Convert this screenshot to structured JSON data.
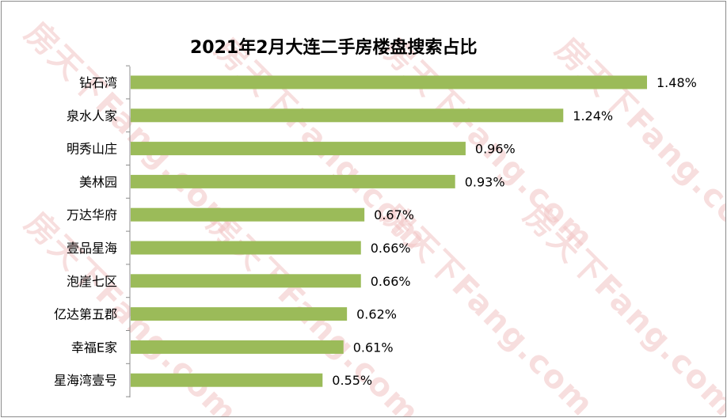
{
  "chart_data": {
    "type": "bar",
    "orientation": "horizontal",
    "title": "2021年2月大连二手房楼盘搜索占比",
    "categories": [
      "钻石湾",
      "泉水人家",
      "明秀山庄",
      "美林园",
      "万达华府",
      "壹品星海",
      "泡崖七区",
      "亿达第五郡",
      "幸福E家",
      "星海湾壹号"
    ],
    "values": [
      1.48,
      1.24,
      0.96,
      0.93,
      0.67,
      0.66,
      0.66,
      0.62,
      0.61,
      0.55
    ],
    "value_labels": [
      "1.48%",
      "1.24%",
      "0.96%",
      "0.93%",
      "0.67%",
      "0.66%",
      "0.66%",
      "0.62%",
      "0.61%",
      "0.55%"
    ],
    "unit": "%",
    "xlim": [
      0,
      1.48
    ],
    "grid": false,
    "bar_color": "#9bbb59"
  },
  "watermark": "房天下Fang.com"
}
